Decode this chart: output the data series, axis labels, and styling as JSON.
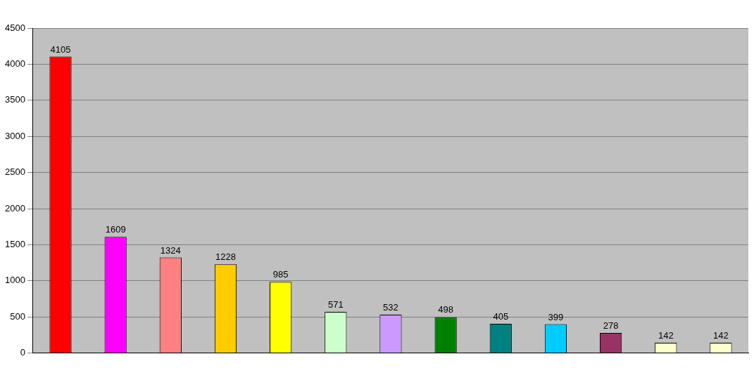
{
  "chart_data": {
    "type": "bar",
    "categories": [
      null,
      null,
      null,
      null,
      null,
      null,
      null,
      null,
      null,
      null,
      null,
      null,
      null
    ],
    "values": [
      4105,
      1609,
      1324,
      1228,
      985,
      571,
      532,
      498,
      405,
      399,
      278,
      142,
      142
    ],
    "colors": [
      "#ff0000",
      "#ff00ff",
      "#ff8080",
      "#ffcc00",
      "#ffff00",
      "#ccffcc",
      "#cc99ff",
      "#008000",
      "#008080",
      "#00ccff",
      "#993366",
      "#ffffcc",
      "#ffffcc"
    ],
    "ylim": [
      0,
      4500
    ],
    "yticks": [
      0,
      500,
      1000,
      1500,
      2000,
      2500,
      3000,
      3500,
      4000,
      4500
    ],
    "grid": "y",
    "data_labels": true,
    "legend": false
  }
}
